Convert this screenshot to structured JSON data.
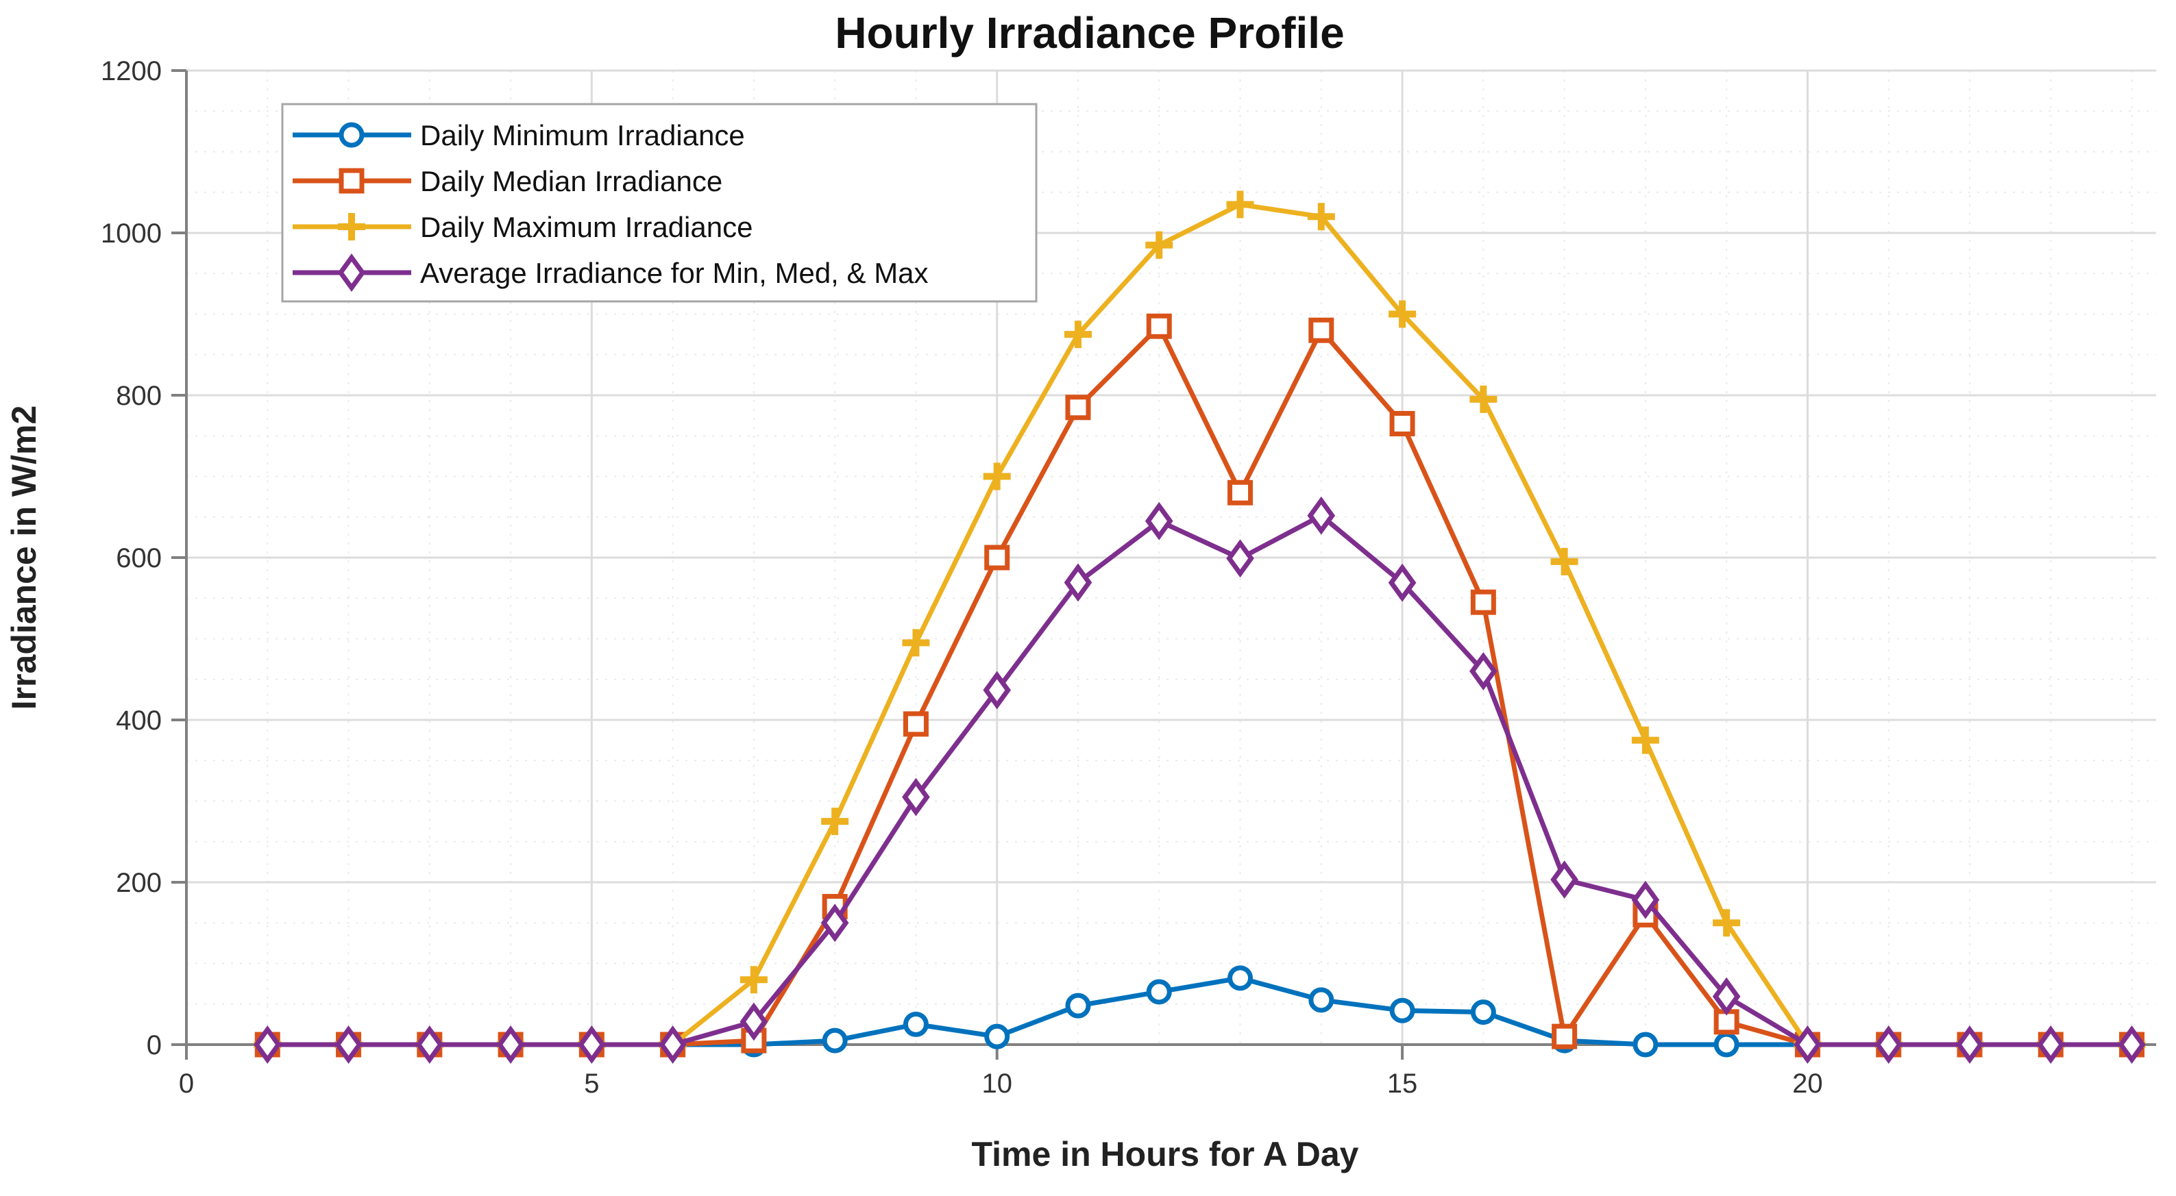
{
  "figure": {
    "title": "Hourly Irradiance Profile"
  },
  "chart_data": {
    "type": "line",
    "title": "Hourly Irradiance Profile",
    "xlabel": "Time in Hours for A Day",
    "ylabel": "Irradiance in W/m2",
    "xlim": [
      0,
      24.3
    ],
    "ylim": [
      0,
      1200
    ],
    "xticks": [
      0,
      5,
      10,
      15,
      20
    ],
    "yticks": [
      0,
      200,
      400,
      600,
      800,
      1000,
      1200
    ],
    "grid": true,
    "minor_grid": true,
    "legend_position": "top-left",
    "x": [
      1,
      2,
      3,
      4,
      5,
      6,
      7,
      8,
      9,
      10,
      11,
      12,
      13,
      14,
      15,
      16,
      17,
      18,
      19,
      20,
      21,
      22,
      23,
      24
    ],
    "series": [
      {
        "name": "Daily Minimum Irradiance",
        "color": "#0072BD",
        "marker": "circle",
        "values": [
          0,
          0,
          0,
          0,
          0,
          0,
          0,
          5,
          25,
          10,
          48,
          65,
          82,
          55,
          42,
          40,
          5,
          0,
          0,
          0,
          0,
          0,
          0,
          0
        ]
      },
      {
        "name": "Daily Median Irradiance",
        "color": "#D95319",
        "marker": "square",
        "values": [
          0,
          0,
          0,
          0,
          0,
          0,
          5,
          170,
          395,
          600,
          785,
          885,
          680,
          880,
          765,
          545,
          10,
          160,
          28,
          0,
          0,
          0,
          0,
          0
        ]
      },
      {
        "name": "Daily Maximum Irradiance",
        "color": "#EDB120",
        "marker": "plus",
        "values": [
          0,
          0,
          0,
          0,
          0,
          0,
          80,
          275,
          495,
          700,
          875,
          985,
          1035,
          1020,
          900,
          795,
          595,
          375,
          150,
          0,
          0,
          0,
          0,
          0
        ]
      },
      {
        "name": "Average Irradiance for Min, Med, & Max",
        "color": "#7E2F8E",
        "marker": "diamond",
        "values": [
          0,
          0,
          0,
          0,
          0,
          0,
          28.3,
          150,
          305,
          436.7,
          569.3,
          645,
          599,
          651.7,
          569,
          460,
          203.3,
          178.3,
          59.3,
          0,
          0,
          0,
          0,
          0
        ]
      }
    ],
    "axis_color": "#808080",
    "grid_color": "#dcdcdc",
    "minor_grid_color": "#eaeaea"
  }
}
